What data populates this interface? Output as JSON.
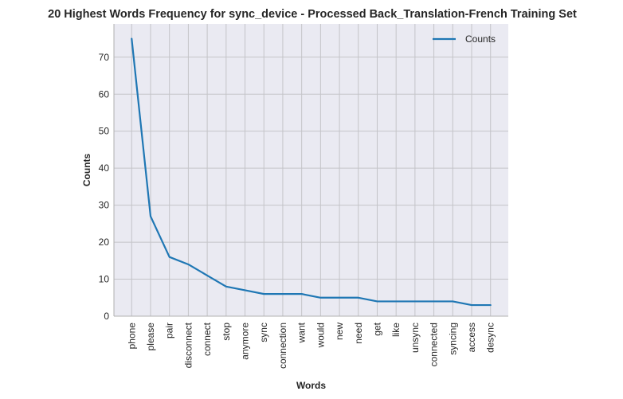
{
  "chart_data": {
    "type": "line",
    "title": "20 Highest Words Frequency for sync_device - Processed Back_Translation-French Training Set",
    "xlabel": "Words",
    "ylabel": "Counts",
    "categories": [
      "phone",
      "please",
      "pair",
      "disconnect",
      "connect",
      "stop",
      "anymore",
      "sync",
      "connection",
      "want",
      "would",
      "new",
      "need",
      "get",
      "like",
      "unsync",
      "connected",
      "syncing",
      "access",
      "desync"
    ],
    "series": [
      {
        "name": "Counts",
        "color": "#1f77b4",
        "values": [
          75,
          27,
          16,
          14,
          11,
          8,
          7,
          6,
          6,
          6,
          5,
          5,
          5,
          4,
          4,
          4,
          4,
          4,
          3,
          3
        ]
      }
    ],
    "ylim": [
      0,
      79
    ],
    "yticks": [
      0,
      10,
      20,
      30,
      40,
      50,
      60,
      70
    ],
    "grid": true,
    "legend_position": "top-right",
    "plot_background": "#eaeaf2",
    "grid_color": "#c4c4c8"
  }
}
